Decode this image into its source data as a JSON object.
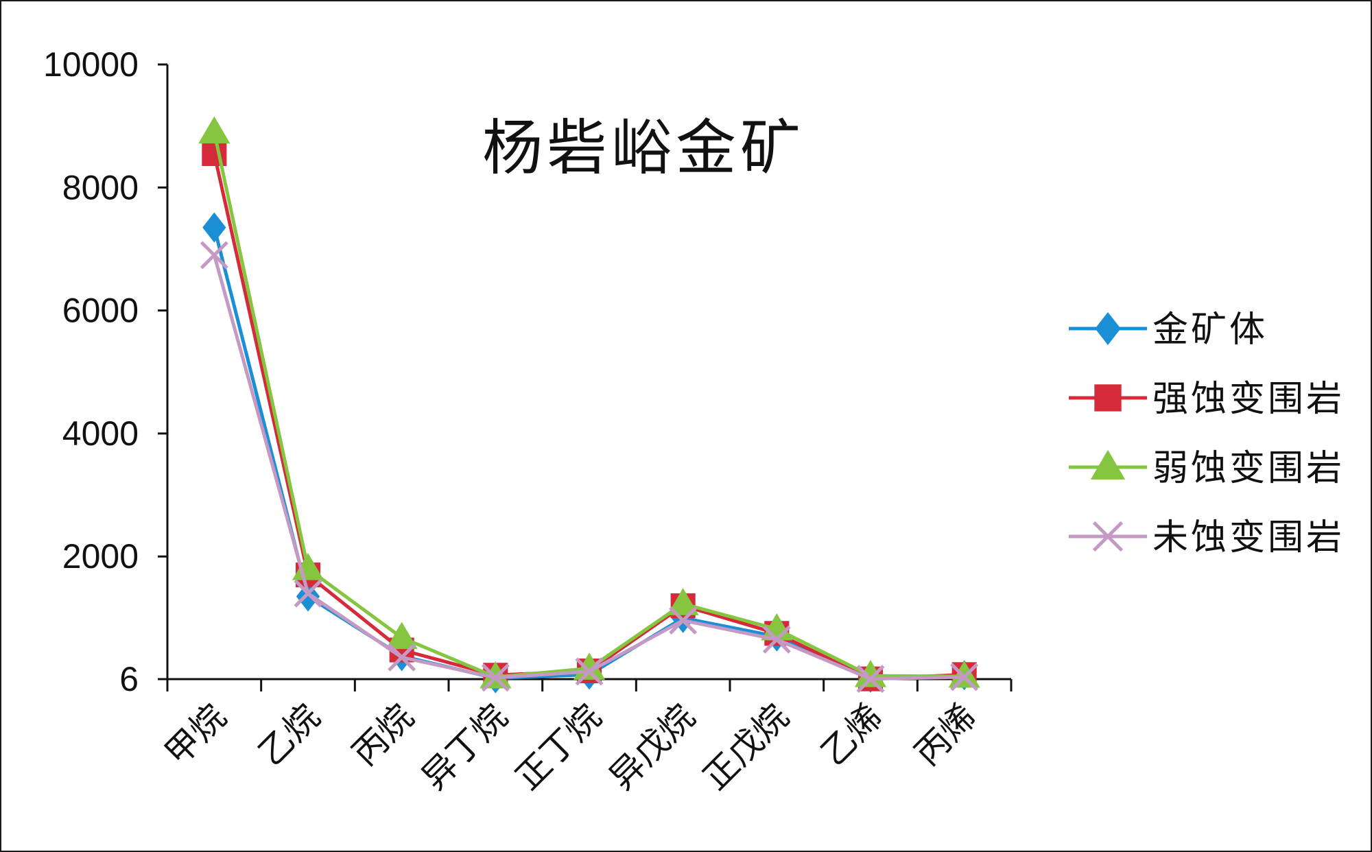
{
  "chart_data": {
    "type": "line",
    "title": "杨砦峪金矿",
    "categories": [
      "甲烷",
      "乙烷",
      "丙烷",
      "异丁烷",
      "正丁烷",
      "异戊烷",
      "正戊烷",
      "乙烯",
      "丙烯"
    ],
    "y_ticks": [
      "6",
      "2000",
      "4000",
      "6000",
      "8000",
      "10000"
    ],
    "ylim": [
      6,
      10000
    ],
    "legend_position": "right",
    "series": [
      {
        "name": "金矿体",
        "color": "#1a8fd6",
        "marker": "diamond",
        "values": [
          7350,
          1350,
          380,
          20,
          80,
          1000,
          700,
          30,
          70
        ]
      },
      {
        "name": "强蚀变围岩",
        "color": "#d42a3a",
        "marker": "square",
        "values": [
          8550,
          1700,
          480,
          70,
          140,
          1200,
          750,
          10,
          80
        ]
      },
      {
        "name": "弱蚀变围岩",
        "color": "#86c540",
        "marker": "triangle",
        "values": [
          8900,
          1800,
          680,
          40,
          180,
          1230,
          820,
          60,
          50
        ]
      },
      {
        "name": "未蚀变围岩",
        "color": "#c49ac4",
        "marker": "x",
        "values": [
          6900,
          1400,
          360,
          30,
          130,
          960,
          650,
          10,
          40
        ]
      }
    ]
  }
}
